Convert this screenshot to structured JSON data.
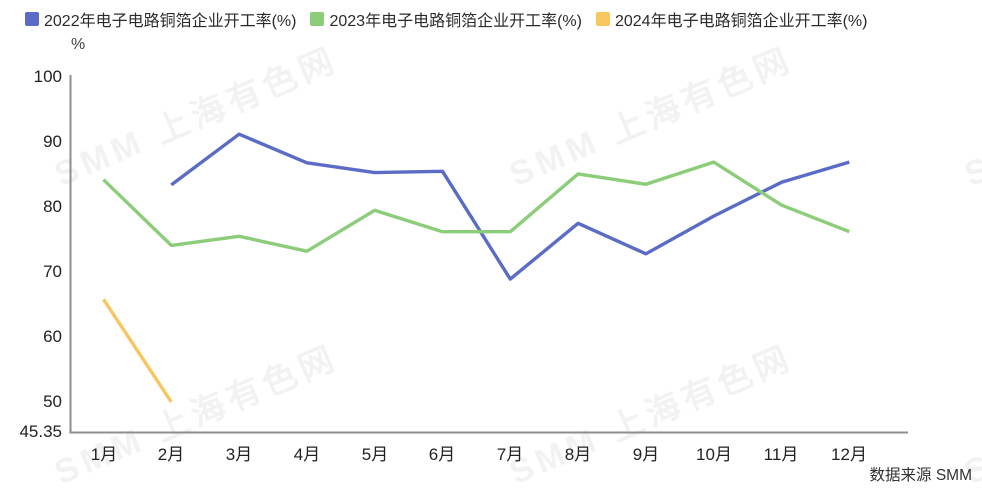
{
  "legend": {
    "items": [
      {
        "label": "2022年电子电路铜箔企业开工率(%)",
        "color": "#5A6CC5"
      },
      {
        "label": "2023年电子电路铜箔企业开工率(%)",
        "color": "#8CCD79"
      },
      {
        "label": "2024年电子电路铜箔企业开工率(%)",
        "color": "#F7C65F"
      }
    ]
  },
  "chart_data": {
    "type": "line",
    "title": "",
    "xlabel": "",
    "ylabel_unit": "%",
    "categories": [
      "1月",
      "2月",
      "3月",
      "4月",
      "5月",
      "6月",
      "7月",
      "8月",
      "9月",
      "10月",
      "11月",
      "12月"
    ],
    "series": [
      {
        "name": "2022年电子电路铜箔企业开工率(%)",
        "color": "#5A6CC5",
        "values": [
          null,
          83.4,
          91.2,
          86.8,
          85.3,
          85.5,
          68.9,
          77.5,
          72.8,
          78.6,
          83.8,
          86.9
        ]
      },
      {
        "name": "2023年电子电路铜箔企业开工率(%)",
        "color": "#8CCD79",
        "values": [
          84.2,
          74.1,
          75.5,
          73.2,
          79.5,
          76.2,
          76.2,
          85.1,
          83.5,
          86.9,
          80.3,
          76.2
        ]
      },
      {
        "name": "2024年电子电路铜箔企业开工率(%)",
        "color": "#F7C65F",
        "values": [
          65.8,
          50.0,
          null,
          null,
          null,
          null,
          null,
          null,
          null,
          null,
          null,
          null
        ]
      }
    ],
    "y_ticks": [
      100,
      90,
      80,
      70,
      60,
      50,
      45.35
    ],
    "y_min": 45.35,
    "y_max": 100,
    "grid": false,
    "legend_position": "top"
  },
  "watermark": {
    "text": "SMM 上海有色网"
  },
  "source_note": "数据来源 SMM"
}
